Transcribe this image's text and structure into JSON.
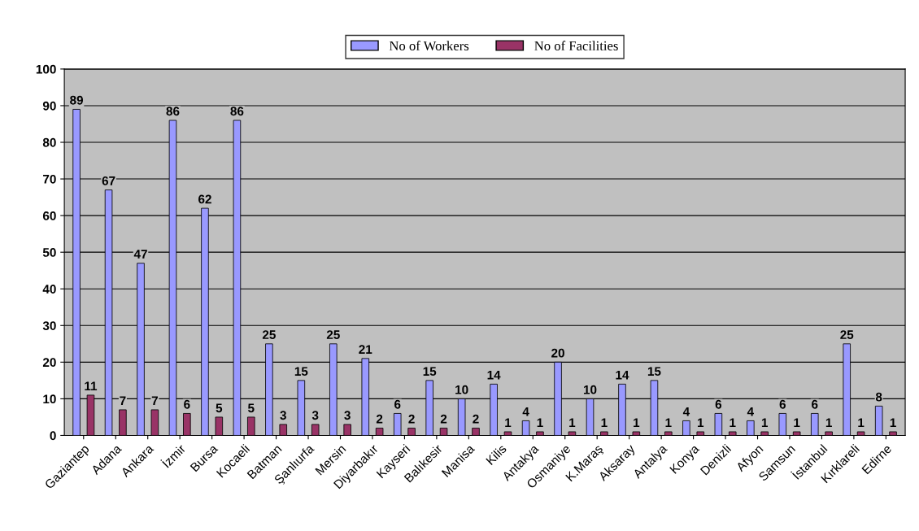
{
  "chart_data": {
    "type": "bar",
    "categories": [
      "Gaziantep",
      "Adana",
      "Ankara",
      "İzmir",
      "Bursa",
      "Kocaeli",
      "Batman",
      "Şanlıurfa",
      "Mersin",
      "Diyarbakır",
      "Kayseri",
      "Balıkesir",
      "Manisa",
      "Kilis",
      "Antakya",
      "Osmaniye",
      "K.Maraş",
      "Aksaray",
      "Antalya",
      "Konya",
      "Denizli",
      "Afyon",
      "Samsun",
      "İstanbul",
      "Kırklareli",
      "Edirne"
    ],
    "series": [
      {
        "name": "No of Workers",
        "color": "#9999ff",
        "values": [
          89,
          67,
          47,
          86,
          62,
          86,
          25,
          15,
          25,
          21,
          6,
          15,
          10,
          14,
          4,
          20,
          10,
          14,
          15,
          4,
          6,
          4,
          6,
          6,
          25,
          8
        ]
      },
      {
        "name": "No of Facilities",
        "color": "#993366",
        "values": [
          11,
          7,
          7,
          6,
          5,
          5,
          3,
          3,
          3,
          2,
          2,
          2,
          2,
          1,
          1,
          1,
          1,
          1,
          1,
          1,
          1,
          1,
          1,
          1,
          1,
          1
        ]
      }
    ],
    "ylim": [
      0,
      100
    ],
    "yticks": [
      0,
      10,
      20,
      30,
      40,
      50,
      60,
      70,
      80,
      90,
      100
    ],
    "grid": "y",
    "legend": "top",
    "data_labels": true
  }
}
